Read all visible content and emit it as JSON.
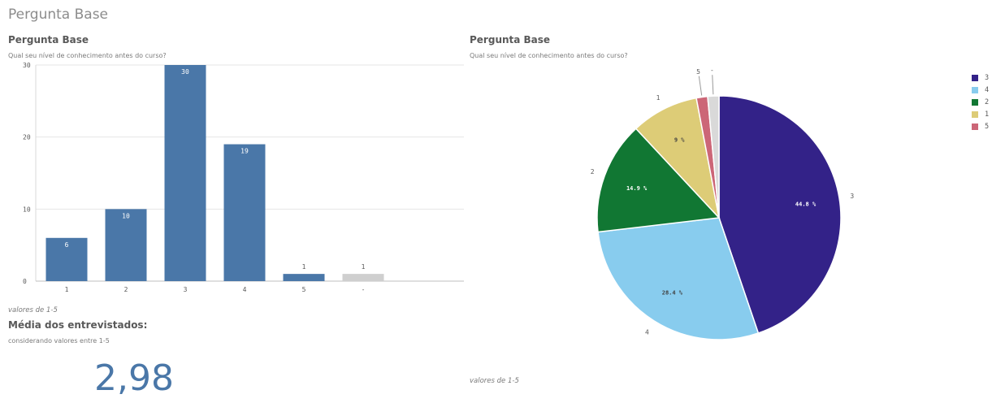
{
  "sheet": {
    "title": "Pergunta Base"
  },
  "bar_panel": {
    "title": "Pergunta Base",
    "subtitle": "Qual seu nível de conhecimento antes do curso?",
    "footnote": "valores de 1-5"
  },
  "kpi_panel": {
    "title": "Média dos entrevistados:",
    "subtitle": "considerando valores entre 1-5",
    "value": "2,98"
  },
  "pie_panel": {
    "title": "Pergunta Base",
    "subtitle": "Qual seu nível de conhecimento antes do curso?",
    "footnote": "valores de 1-5"
  },
  "chart_data": [
    {
      "type": "bar",
      "title": "Pergunta Base",
      "subtitle": "Qual seu nível de conhecimento antes do curso?",
      "categories": [
        "1",
        "2",
        "3",
        "4",
        "5",
        "-"
      ],
      "values": [
        6,
        10,
        30,
        19,
        1,
        1
      ],
      "colors": [
        "#4a77a8",
        "#4a77a8",
        "#4a77a8",
        "#4a77a8",
        "#4a77a8",
        "#cfcfcf"
      ],
      "ylim": [
        0,
        30
      ],
      "yticks": [
        0,
        10,
        20,
        30
      ],
      "grid": true
    },
    {
      "type": "pie",
      "title": "Pergunta Base",
      "subtitle": "Qual seu nível de conhecimento antes do curso?",
      "slices": [
        {
          "label": "3",
          "value": 30,
          "pct_label": "44.8 %",
          "color": "#332288"
        },
        {
          "label": "4",
          "value": 19,
          "pct_label": "28.4 %",
          "color": "#88ccee"
        },
        {
          "label": "2",
          "value": 10,
          "pct_label": "14.9 %",
          "color": "#117733"
        },
        {
          "label": "1",
          "value": 6,
          "pct_label": "9 %",
          "color": "#ddcc77"
        },
        {
          "label": "5",
          "value": 1,
          "pct_label": "",
          "color": "#cc6677"
        },
        {
          "label": "-",
          "value": 1,
          "pct_label": "",
          "color": "#d9d9d9"
        }
      ],
      "legend": {
        "position": "right",
        "entries": [
          {
            "label": "3",
            "color": "#332288"
          },
          {
            "label": "4",
            "color": "#88ccee"
          },
          {
            "label": "2",
            "color": "#117733"
          },
          {
            "label": "1",
            "color": "#ddcc77"
          },
          {
            "label": "5",
            "color": "#cc6677"
          }
        ]
      }
    }
  ]
}
